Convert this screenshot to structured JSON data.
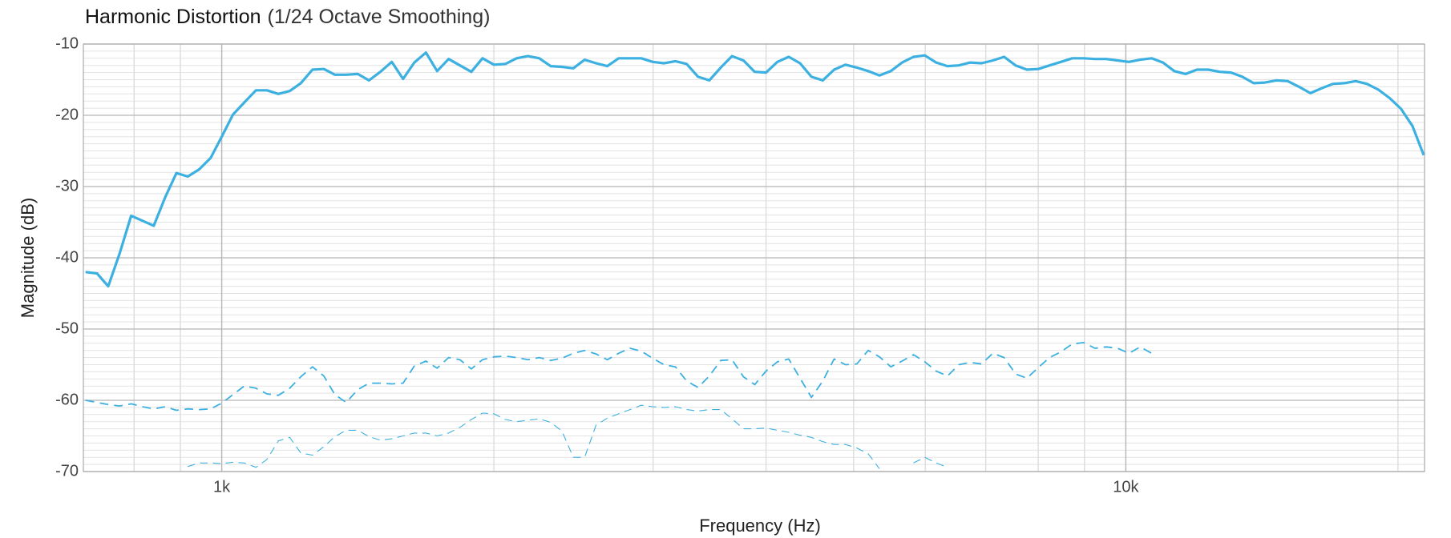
{
  "chart_data": {
    "type": "line",
    "title": "Harmonic Distortion",
    "subtitle": "(1/24 Octave Smoothing)",
    "x_label": "Frequency (Hz)",
    "y_label": "Magnitude (dB)",
    "x_scale": "log",
    "grid": true,
    "xlim": [
      703,
      21400
    ],
    "ylim": [
      -70,
      -10
    ],
    "xticks": [
      {
        "value": 1000,
        "label": "1k"
      },
      {
        "value": 10000,
        "label": "10k"
      }
    ],
    "x_minor_ticks": [
      800,
      900,
      2000,
      3000,
      4000,
      5000,
      6000,
      7000,
      8000,
      9000,
      20000
    ],
    "yticks": [
      -70,
      -60,
      -50,
      -40,
      -30,
      -20,
      -10
    ],
    "y_minor_ticks": [
      -69,
      -68,
      -67,
      -66,
      -65,
      -64,
      -63,
      -62,
      -61,
      -59,
      -58,
      -57,
      -56,
      -55,
      -54,
      -53,
      -52,
      -51,
      -49,
      -48,
      -47,
      -46,
      -45,
      -44,
      -43,
      -42,
      -41,
      -39,
      -38,
      -37,
      -36,
      -35,
      -34,
      -33,
      -32,
      -31,
      -29,
      -28,
      -27,
      -26,
      -25,
      -24,
      -23,
      -22,
      -21,
      -19,
      -18,
      -17,
      -16,
      -15,
      -14,
      -13,
      -12,
      -11
    ],
    "x": [
      707,
      728,
      749,
      771,
      794,
      817,
      841,
      866,
      891,
      917,
      944,
      972,
      1000,
      1029,
      1059,
      1091,
      1122,
      1155,
      1189,
      1223,
      1260,
      1297,
      1334,
      1373,
      1414,
      1455,
      1498,
      1542,
      1587,
      1633,
      1682,
      1731,
      1782,
      1834,
      1888,
      1943,
      2000,
      2059,
      2119,
      2181,
      2245,
      2311,
      2378,
      2448,
      2520,
      2594,
      2670,
      2748,
      2828,
      2911,
      2997,
      3084,
      3175,
      3268,
      3364,
      3462,
      3564,
      3668,
      3776,
      3886,
      4000,
      4117,
      4238,
      4362,
      4490,
      4621,
      4757,
      4896,
      5040,
      5188,
      5339,
      5496,
      5657,
      5823,
      5993,
      6169,
      6350,
      6536,
      6727,
      6925,
      7127,
      7336,
      7551,
      7773,
      8000,
      8235,
      8476,
      8724,
      8980,
      9243,
      9514,
      9793,
      10079,
      10375,
      10679,
      10992,
      11314,
      11646,
      11987,
      12338,
      12699,
      13072,
      13454,
      13849,
      14254,
      14672,
      15102,
      15545,
      16000,
      16469,
      16951,
      17448,
      17959,
      18485,
      19027,
      19585,
      20159,
      20749,
      21357
    ],
    "series": [
      {
        "color": "#3cb0e0",
        "line_style": "solid",
        "line_width": 3.2,
        "values": [
          -42.0,
          -42.2,
          -44.0,
          -39.4,
          -34.1,
          -34.8,
          -35.5,
          -31.5,
          -28.1,
          -28.6,
          -27.6,
          -26.0,
          -23.0,
          -19.9,
          -18.2,
          -16.5,
          -16.5,
          -17.0,
          -16.6,
          -15.5,
          -13.6,
          -13.5,
          -14.3,
          -14.3,
          -14.2,
          -15.1,
          -13.9,
          -12.5,
          -14.9,
          -12.6,
          -11.2,
          -13.8,
          -12.1,
          -13.0,
          -13.9,
          -12.0,
          -12.9,
          -12.8,
          -12.0,
          -11.7,
          -12.0,
          -13.1,
          -13.2,
          -13.4,
          -12.2,
          -12.7,
          -13.1,
          -12.0,
          -12.0,
          -12.0,
          -12.5,
          -12.7,
          -12.4,
          -12.8,
          -14.6,
          -15.1,
          -13.3,
          -11.7,
          -12.3,
          -13.9,
          -14.0,
          -12.5,
          -11.8,
          -12.7,
          -14.6,
          -15.1,
          -13.6,
          -12.9,
          -13.3,
          -13.8,
          -14.4,
          -13.8,
          -12.6,
          -11.8,
          -11.6,
          -12.6,
          -13.1,
          -13.0,
          -12.6,
          -12.7,
          -12.3,
          -11.8,
          -13.0,
          -13.6,
          -13.5,
          -13.0,
          -12.5,
          -12.0,
          -12.0,
          -12.1,
          -12.1,
          -12.3,
          -12.5,
          -12.2,
          -12.0,
          -12.6,
          -13.8,
          -14.2,
          -13.6,
          -13.6,
          -13.9,
          -14.0,
          -14.6,
          -15.5,
          -15.4,
          -15.1,
          -15.2,
          -16.0,
          -16.9,
          -16.2,
          -15.6,
          -15.5,
          -15.2,
          -15.6,
          -16.4,
          -17.6,
          -19.1,
          -21.5,
          -25.6
        ]
      },
      {
        "color": "#3cb0e0",
        "line_style": "dashed",
        "line_width": 1.8,
        "values": [
          -60.0,
          -60.3,
          -60.6,
          -60.8,
          -60.5,
          -60.9,
          -61.2,
          -60.9,
          -61.4,
          -61.2,
          -61.3,
          -61.2,
          -60.4,
          -59.2,
          -58.0,
          -58.3,
          -59.1,
          -59.3,
          -58.3,
          -56.7,
          -55.3,
          -56.6,
          -59.2,
          -60.3,
          -58.5,
          -57.6,
          -57.6,
          -57.7,
          -57.6,
          -55.2,
          -54.5,
          -55.5,
          -54.0,
          -54.3,
          -55.6,
          -54.3,
          -53.9,
          -53.8,
          -54.0,
          -54.3,
          -54.0,
          -54.4,
          -54.1,
          -53.4,
          -53.0,
          -53.5,
          -54.3,
          -53.4,
          -52.7,
          -53.1,
          -54.1,
          -55.0,
          -55.3,
          -57.3,
          -58.2,
          -56.6,
          -54.4,
          -54.3,
          -56.7,
          -57.8,
          -55.9,
          -54.6,
          -54.2,
          -56.9,
          -59.6,
          -57.3,
          -54.2,
          -55.0,
          -54.9,
          -53.0,
          -53.9,
          -55.3,
          -54.5,
          -53.6,
          -54.6,
          -55.9,
          -56.6,
          -55.0,
          -54.7,
          -54.9,
          -53.4,
          -54.0,
          -56.3,
          -56.9,
          -55.4,
          -54.0,
          -53.2,
          -52.1,
          -51.9,
          -52.7,
          -52.5,
          -52.7,
          -53.4,
          -52.5,
          -53.4,
          null,
          null,
          null,
          null,
          null,
          null,
          null,
          null,
          null,
          null,
          null,
          null,
          null,
          null,
          null,
          null,
          null,
          null,
          null,
          null,
          null,
          null,
          null,
          null
        ]
      },
      {
        "color": "#3cb0e0",
        "line_style": "dashed",
        "line_width": 1.1,
        "values": [
          null,
          null,
          null,
          null,
          null,
          null,
          null,
          null,
          null,
          -69.3,
          -68.8,
          -68.8,
          -68.9,
          -68.7,
          -68.8,
          -69.4,
          -68.3,
          -65.7,
          -65.2,
          -67.4,
          -67.7,
          -66.5,
          -65.1,
          -64.2,
          -64.2,
          -65.1,
          -65.6,
          -65.4,
          -65.0,
          -64.6,
          -64.6,
          -65.0,
          -64.6,
          -63.8,
          -62.7,
          -61.8,
          -61.9,
          -62.7,
          -63.0,
          -62.8,
          -62.6,
          -63.1,
          -64.3,
          -68.0,
          -68.0,
          -63.5,
          -62.5,
          -61.9,
          -61.3,
          -60.7,
          -60.9,
          -61.0,
          -60.9,
          -61.3,
          -61.5,
          -61.3,
          -61.3,
          -62.6,
          -64.0,
          -64.0,
          -63.9,
          -64.2,
          -64.5,
          -64.9,
          -65.2,
          -65.8,
          -66.2,
          -66.2,
          -66.7,
          -67.5,
          -69.6,
          null,
          null,
          -68.8,
          -68.0,
          -68.8,
          -69.4,
          null,
          null,
          null,
          null,
          null,
          null,
          null,
          null,
          null,
          null,
          null,
          null,
          null,
          null,
          null,
          null,
          null,
          null,
          null,
          null,
          null,
          null,
          null,
          null,
          null,
          null,
          null,
          null,
          null,
          null,
          null,
          null,
          null,
          null,
          null,
          null,
          null,
          null,
          null,
          null,
          null,
          null
        ]
      }
    ]
  }
}
